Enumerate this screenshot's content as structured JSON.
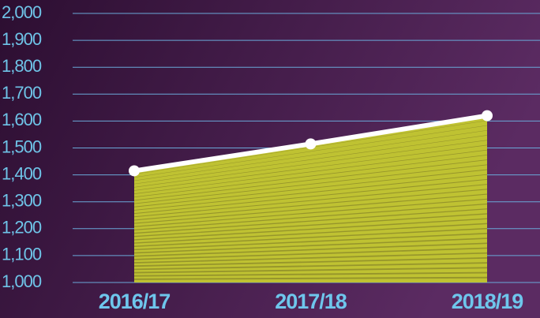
{
  "chart_data": {
    "type": "area",
    "categories": [
      "2016/17",
      "2017/18",
      "2018/19"
    ],
    "values": [
      1415,
      1515,
      1620
    ],
    "color": "#bfc232",
    "line_color": "#ffffff",
    "ylim": [
      1000,
      2000
    ],
    "yticks": [
      {
        "value": 1000,
        "label": "1,000"
      },
      {
        "value": 1100,
        "label": "1,100"
      },
      {
        "value": 1200,
        "label": "1,200"
      },
      {
        "value": 1300,
        "label": "1,300"
      },
      {
        "value": 1400,
        "label": "1,400"
      },
      {
        "value": 1500,
        "label": "1,500"
      },
      {
        "value": 1600,
        "label": "1,600"
      },
      {
        "value": 1700,
        "label": "1,700"
      },
      {
        "value": 1800,
        "label": "1,800"
      },
      {
        "value": 1900,
        "label": "1,900"
      },
      {
        "value": 2000,
        "label": "2,000"
      }
    ],
    "grid": true
  }
}
